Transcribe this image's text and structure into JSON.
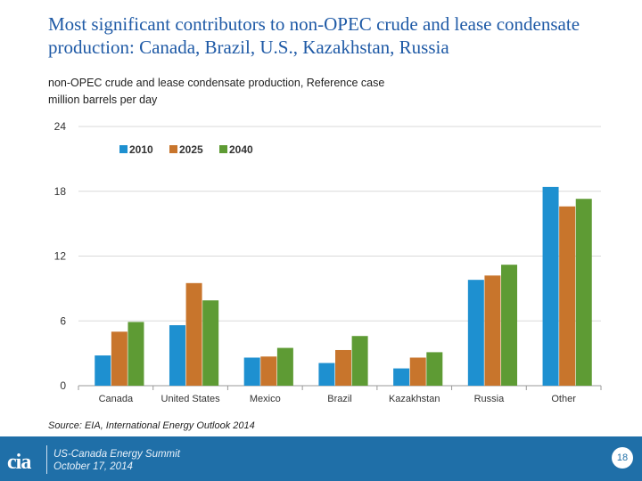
{
  "slide": {
    "title": "Most significant contributors to non-OPEC crude and lease condensate production: Canada, Brazil, U.S., Kazakhstan, Russia",
    "subtitle_line1": "non-OPEC crude and lease condensate production, Reference case",
    "subtitle_line2": "million barrels per day",
    "source": "Source:  EIA, International Energy Outlook 2014",
    "footer_event_line1": "US-Canada Energy Summit",
    "footer_event_line2": "October 17, 2014",
    "page_number": "18",
    "logo_text": "cia"
  },
  "colors": {
    "series_2010": "#1e90d0",
    "series_2025": "#c8752c",
    "series_2040": "#5e9b34",
    "footer": "#1f6fa8",
    "title": "#1f5aa6"
  },
  "chart_data": {
    "type": "bar",
    "title": "",
    "xlabel": "",
    "ylabel": "",
    "categories": [
      "Canada",
      "United States",
      "Mexico",
      "Brazil",
      "Kazakhstan",
      "Russia",
      "Other"
    ],
    "series": [
      {
        "name": "2010",
        "values": [
          2.8,
          5.6,
          2.6,
          2.1,
          1.6,
          9.8,
          18.4
        ]
      },
      {
        "name": "2025",
        "values": [
          5.0,
          9.5,
          2.7,
          3.3,
          2.6,
          10.2,
          16.6
        ]
      },
      {
        "name": "2040",
        "values": [
          5.9,
          7.9,
          3.5,
          4.6,
          3.1,
          11.2,
          17.3
        ]
      }
    ],
    "ylim": [
      0,
      24
    ],
    "yticks": [
      0,
      6,
      12,
      18,
      24
    ],
    "grid": true,
    "legend": "top-left"
  }
}
